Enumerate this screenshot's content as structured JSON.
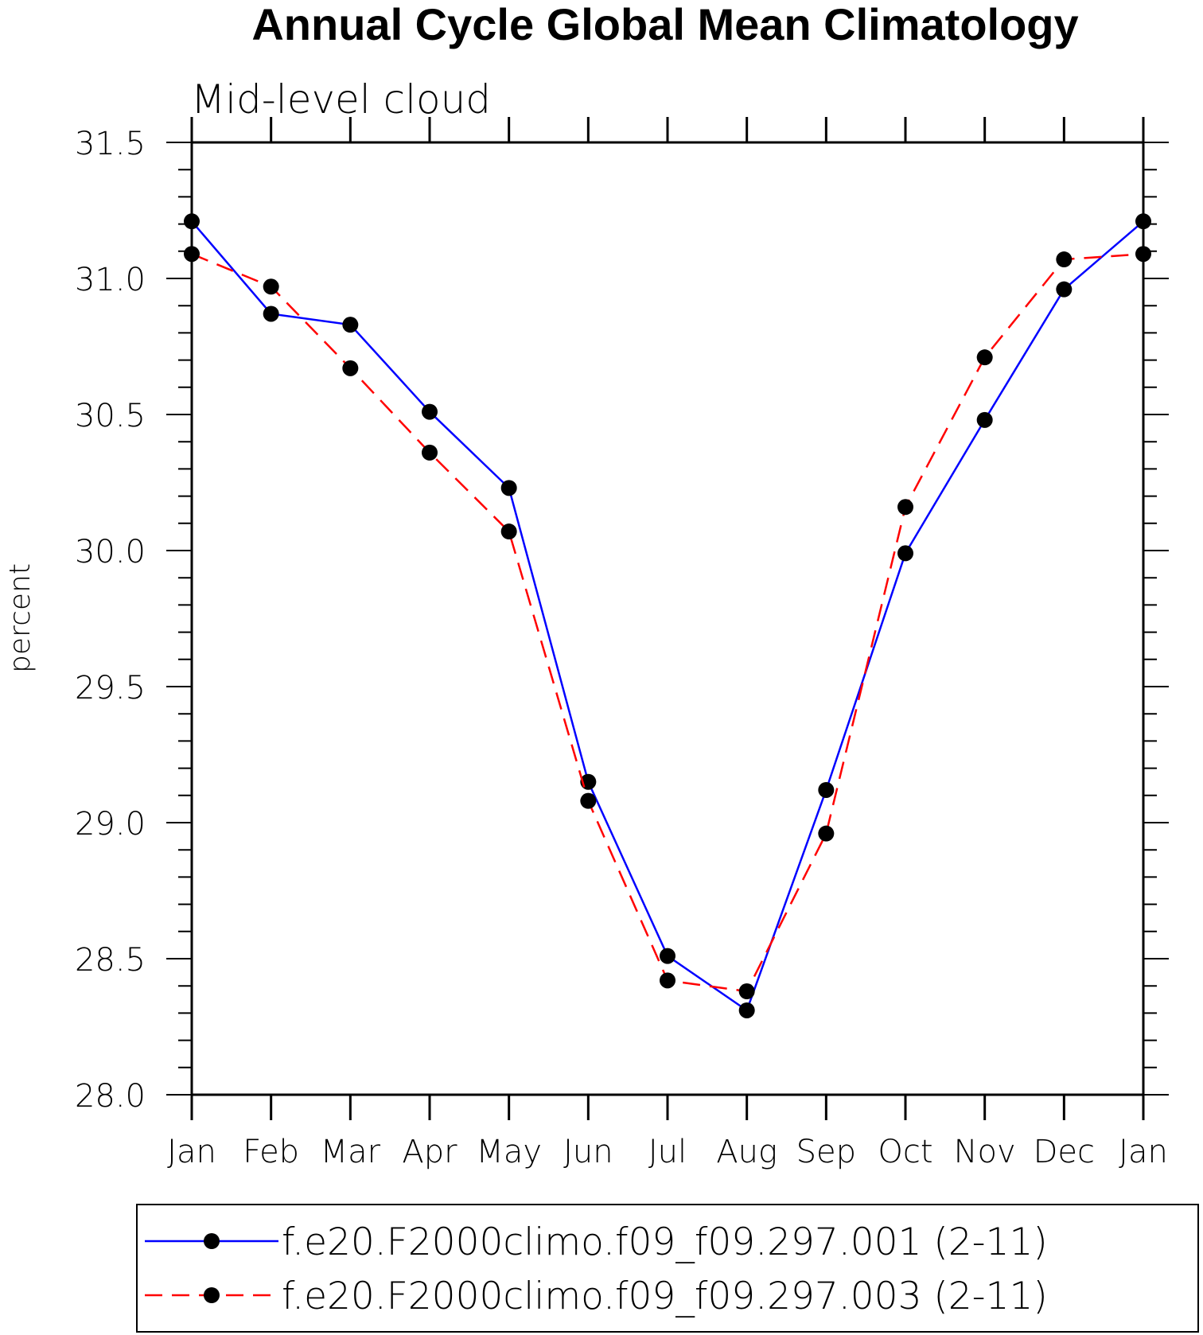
{
  "chart_data": {
    "type": "line",
    "title": "Annual Cycle Global Mean Climatology",
    "subtitle": "Mid-level cloud",
    "xlabel": "",
    "ylabel": "percent",
    "categories": [
      "Jan",
      "Feb",
      "Mar",
      "Apr",
      "May",
      "Jun",
      "Jul",
      "Aug",
      "Sep",
      "Oct",
      "Nov",
      "Dec",
      "Jan"
    ],
    "ylim": [
      28.0,
      31.5
    ],
    "yticks": [
      28.0,
      28.5,
      29.0,
      29.5,
      30.0,
      30.5,
      31.0,
      31.5
    ],
    "ytick_labels": [
      "28.0",
      "28.5",
      "29.0",
      "29.5",
      "30.0",
      "30.5",
      "31.0",
      "31.5"
    ],
    "grid": false,
    "legend_position": "bottom",
    "series": [
      {
        "name": "f.e20.F2000climo.f09_f09.297.001 (2-11)",
        "color": "#0000ff",
        "line_style": "solid",
        "marker": "filled-circle",
        "values": [
          31.21,
          30.87,
          30.83,
          30.51,
          30.23,
          29.15,
          28.51,
          28.31,
          29.12,
          29.99,
          30.48,
          30.96,
          31.21
        ]
      },
      {
        "name": "f.e20.F2000climo.f09_f09.297.003 (2-11)",
        "color": "#ff0000",
        "line_style": "dashed",
        "marker": "filled-circle",
        "values": [
          31.09,
          30.97,
          30.67,
          30.36,
          30.07,
          29.08,
          28.42,
          28.38,
          28.96,
          30.16,
          30.71,
          31.07,
          31.09
        ]
      }
    ]
  }
}
